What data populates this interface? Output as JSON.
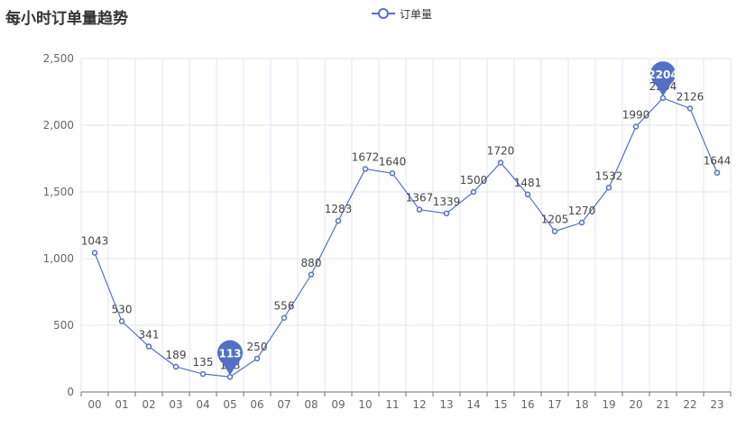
{
  "title": "每小时订单量趋势",
  "legend": {
    "label": "订单量"
  },
  "colors": {
    "series": "#5470c6",
    "grid": "#e0e6f1",
    "axis": "#6e7079",
    "text": "#333333"
  },
  "chart_data": {
    "type": "line",
    "title": "每小时订单量趋势",
    "xlabel": "",
    "ylabel": "",
    "categories": [
      "00",
      "01",
      "02",
      "03",
      "04",
      "05",
      "06",
      "07",
      "08",
      "09",
      "10",
      "11",
      "12",
      "13",
      "14",
      "15",
      "16",
      "17",
      "18",
      "19",
      "20",
      "21",
      "22",
      "23"
    ],
    "series": [
      {
        "name": "订单量",
        "values": [
          1043,
          530,
          341,
          189,
          135,
          113,
          250,
          556,
          880,
          1283,
          1672,
          1640,
          1367,
          1339,
          1500,
          1720,
          1481,
          1205,
          1270,
          1532,
          1990,
          2204,
          2126,
          1644
        ]
      }
    ],
    "ylim": [
      0,
      2500
    ],
    "yticks": [
      0,
      500,
      1000,
      1500,
      2000,
      2500
    ],
    "ytick_labels": [
      "0",
      "500",
      "1,000",
      "1,500",
      "2,000",
      "2,500"
    ],
    "grid": true,
    "legend_position": "top-center",
    "mark_points": [
      {
        "type": "min",
        "label": "113",
        "category": "05",
        "value": 113
      },
      {
        "type": "max",
        "label": "2204",
        "category": "21",
        "value": 2204
      }
    ]
  }
}
